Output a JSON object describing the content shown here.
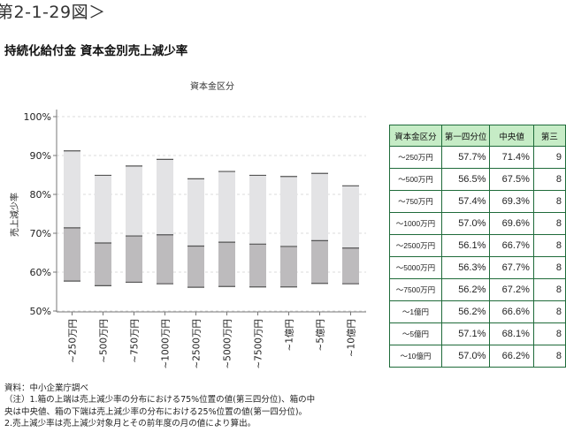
{
  "figure_number": "第2-1-29図＞",
  "figure_title": "持続化給付金 資本金別売上減少率",
  "chart_data": {
    "type": "box",
    "title": "資本金区分",
    "ylabel": "売上減少率",
    "ylim": [
      0.5,
      1.0
    ],
    "yticks": [
      0.5,
      0.6,
      0.7,
      0.8,
      0.9,
      1.0
    ],
    "ytick_labels": [
      "50%",
      "60%",
      "70%",
      "80%",
      "90%",
      "100%"
    ],
    "grid": true,
    "categories": [
      "~250万円",
      "~500万円",
      "~750万円",
      "~1000万円",
      "~2500万円",
      "~5000万円",
      "~7500万円",
      "~1億円",
      "~5億円",
      "~10億円"
    ],
    "series": [
      {
        "name": "第一四分位",
        "values": [
          0.577,
          0.565,
          0.574,
          0.57,
          0.561,
          0.563,
          0.562,
          0.562,
          0.571,
          0.57
        ]
      },
      {
        "name": "中央値",
        "values": [
          0.714,
          0.675,
          0.693,
          0.696,
          0.667,
          0.677,
          0.672,
          0.666,
          0.681,
          0.662
        ]
      },
      {
        "name": "第三四分位",
        "values": [
          0.912,
          0.849,
          0.873,
          0.89,
          0.84,
          0.859,
          0.849,
          0.846,
          0.854,
          0.822
        ]
      }
    ]
  },
  "table": {
    "headers": [
      "資本金区分",
      "第一四分位",
      "中央値",
      "第三"
    ],
    "rows": [
      [
        "～250万円",
        "57.7%",
        "71.4%",
        "9"
      ],
      [
        "～500万円",
        "56.5%",
        "67.5%",
        "8"
      ],
      [
        "～750万円",
        "57.4%",
        "69.3%",
        "8"
      ],
      [
        "～1000万円",
        "57.0%",
        "69.6%",
        "8"
      ],
      [
        "～2500万円",
        "56.1%",
        "66.7%",
        "8"
      ],
      [
        "～5000万円",
        "56.3%",
        "67.7%",
        "8"
      ],
      [
        "～7500万円",
        "56.2%",
        "67.2%",
        "8"
      ],
      [
        "～1億円",
        "56.2%",
        "66.6%",
        "8"
      ],
      [
        "～5億円",
        "57.1%",
        "68.1%",
        "8"
      ],
      [
        "～10億円",
        "57.0%",
        "66.2%",
        "8"
      ]
    ]
  },
  "notes": [
    "資料：中小企業庁調べ",
    "（注）1.箱の上端は売上減少率の分布における75%位置の値(第三四分位)、箱の中",
    "央は中央値、箱の下端は売上減少率の分布における25%位置の値(第一四分位)。",
    "2.売上減少率は売上減少対象月とその前年度の月の値により算出。"
  ]
}
